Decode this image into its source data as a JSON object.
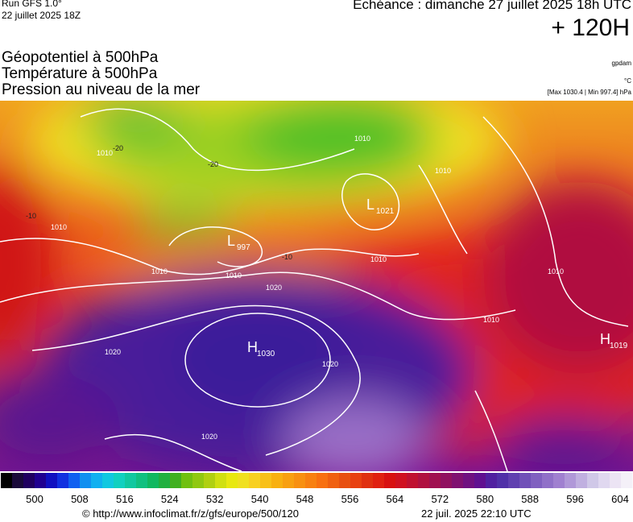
{
  "header": {
    "run": "Run GFS 1.0°",
    "run_date": "22 juillet 2025 18Z",
    "echeance": "Echéance : dimanche 27 juillet 2025 18h UTC",
    "lead": "+ 120H",
    "fields": [
      "Géopotentiel à 500hPa",
      "Température à 500hPa",
      "Pression au niveau de la mer"
    ],
    "units": [
      "gpdam",
      "°C",
      "[Max 1030.4 | Min 997.4] hPa"
    ]
  },
  "map": {
    "centers": [
      {
        "letter": "L",
        "value": "997"
      },
      {
        "letter": "L",
        "value": "1021"
      },
      {
        "letter": "H",
        "value": "1030"
      },
      {
        "letter": "H",
        "value": "1019"
      }
    ],
    "isobars": [
      "1010",
      "1010",
      "1010",
      "1010",
      "1020",
      "1020",
      "1020",
      "1020",
      "1010",
      "1010",
      "1010",
      "1010",
      "1010"
    ],
    "temps": [
      "-20",
      "-20",
      "-10",
      "-10"
    ]
  },
  "colorbar": {
    "labels": [
      500,
      508,
      516,
      524,
      532,
      540,
      548,
      556,
      564,
      572,
      580,
      588,
      596,
      604
    ]
  },
  "footer": {
    "source": "© http://www.infoclimat.fr/z/gfs/europe/500/120",
    "generated": "22 juil. 2025 22:10 UTC"
  }
}
